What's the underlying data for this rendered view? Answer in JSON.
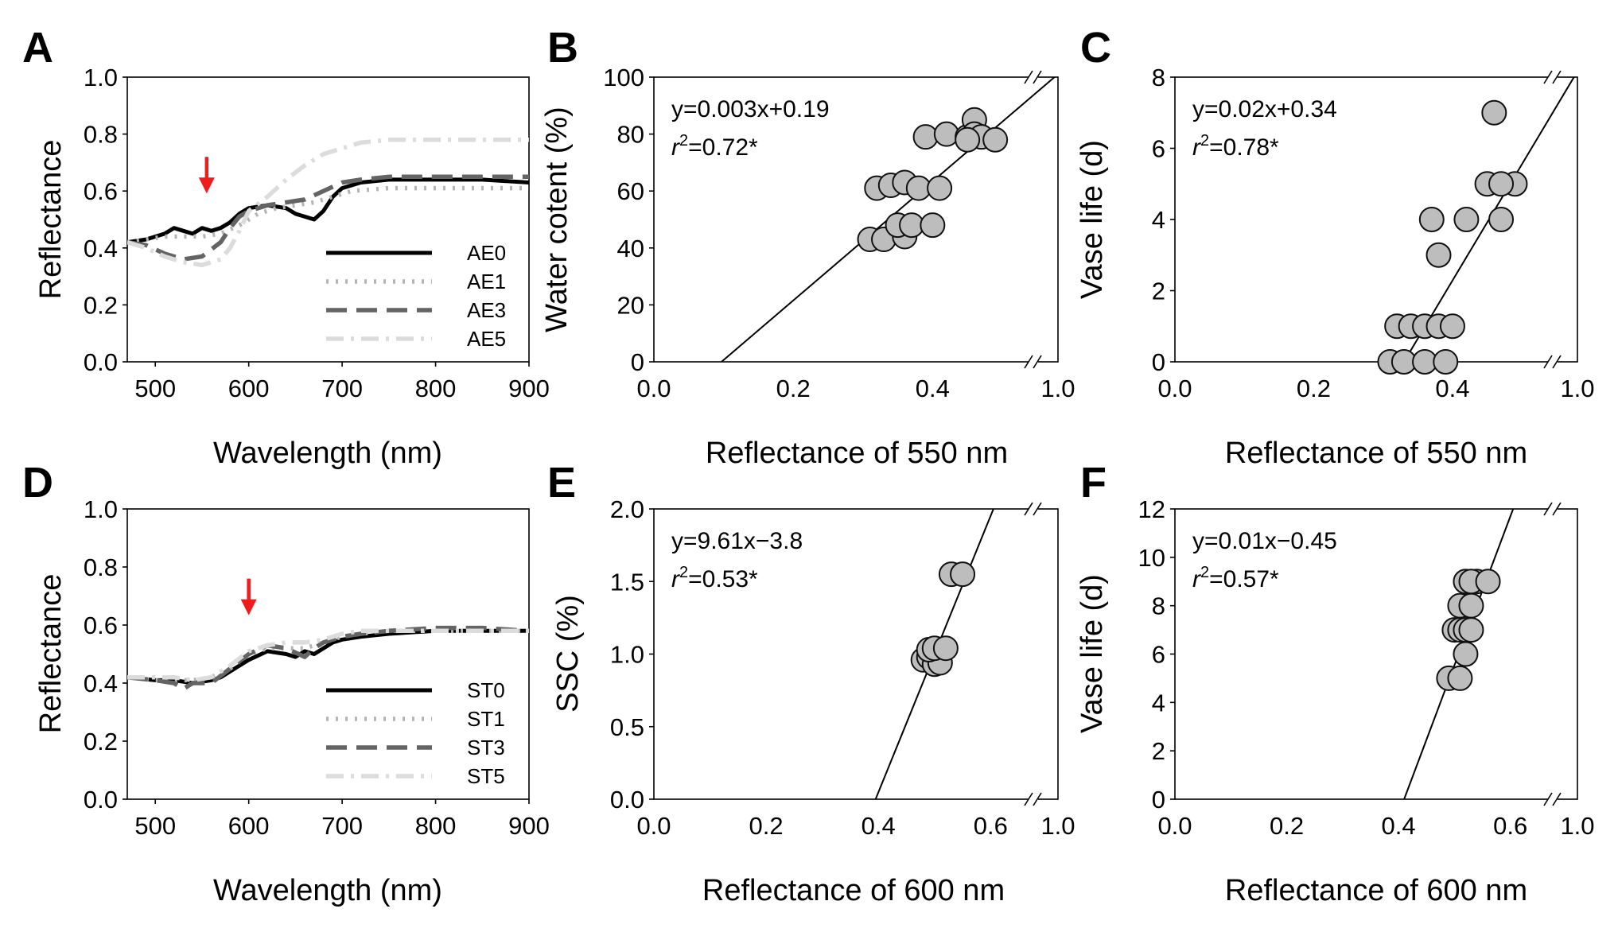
{
  "chart_data": [
    {
      "id": "A",
      "type": "line",
      "panel_label": "A",
      "xlabel": "Wavelength (nm)",
      "ylabel": "Reflectance",
      "xlim": [
        470,
        900
      ],
      "ylim": [
        0.0,
        1.0
      ],
      "xticks": [
        500,
        600,
        700,
        800,
        900
      ],
      "yticks": [
        "0.0",
        "0.2",
        "0.4",
        "0.6",
        "0.8",
        "1.0"
      ],
      "legend_position": "bottom-right",
      "arrow_at": [
        555,
        0.72
      ],
      "arrow_color": "#ee1c1c",
      "series": [
        {
          "name": "AE0",
          "color": "#000000",
          "dash": "solid",
          "x": [
            470,
            490,
            510,
            520,
            530,
            540,
            550,
            560,
            570,
            580,
            590,
            600,
            620,
            640,
            650,
            660,
            670,
            680,
            690,
            700,
            720,
            750,
            800,
            850,
            900
          ],
          "y": [
            0.42,
            0.43,
            0.45,
            0.47,
            0.46,
            0.45,
            0.47,
            0.46,
            0.47,
            0.49,
            0.52,
            0.54,
            0.55,
            0.54,
            0.52,
            0.51,
            0.5,
            0.53,
            0.58,
            0.61,
            0.63,
            0.64,
            0.64,
            0.64,
            0.63
          ]
        },
        {
          "name": "AE1",
          "color": "#b4b4b4",
          "dash": "dot",
          "x": [
            470,
            490,
            510,
            530,
            550,
            570,
            590,
            610,
            630,
            650,
            670,
            690,
            710,
            750,
            800,
            900
          ],
          "y": [
            0.42,
            0.43,
            0.44,
            0.44,
            0.44,
            0.45,
            0.48,
            0.52,
            0.54,
            0.55,
            0.56,
            0.58,
            0.6,
            0.61,
            0.61,
            0.61
          ]
        },
        {
          "name": "AE3",
          "color": "#646464",
          "dash": "dash",
          "x": [
            470,
            490,
            510,
            530,
            550,
            570,
            580,
            590,
            600,
            620,
            640,
            660,
            680,
            700,
            720,
            750,
            800,
            900
          ],
          "y": [
            0.42,
            0.41,
            0.38,
            0.36,
            0.37,
            0.42,
            0.47,
            0.51,
            0.53,
            0.55,
            0.56,
            0.57,
            0.6,
            0.63,
            0.64,
            0.65,
            0.65,
            0.65
          ]
        },
        {
          "name": "AE5",
          "color": "#dcdcdc",
          "dash": "dashdot",
          "x": [
            470,
            490,
            510,
            530,
            550,
            570,
            580,
            590,
            600,
            620,
            640,
            660,
            680,
            700,
            720,
            750,
            800,
            900
          ],
          "y": [
            0.42,
            0.4,
            0.37,
            0.35,
            0.34,
            0.36,
            0.4,
            0.46,
            0.53,
            0.58,
            0.64,
            0.69,
            0.73,
            0.75,
            0.77,
            0.78,
            0.78,
            0.78
          ]
        }
      ]
    },
    {
      "id": "B",
      "type": "scatter",
      "panel_label": "B",
      "xlabel": "Reflectance of 550 nm",
      "ylabel": "Water cotent (%)",
      "xlim": [
        0.0,
        0.58
      ],
      "ylim": [
        0,
        100
      ],
      "xticks": [
        "0.0",
        "0.2",
        "0.4"
      ],
      "xtick_end": "1.0",
      "yticks": [
        "0",
        "20",
        "40",
        "60",
        "80",
        "100"
      ],
      "equation": "y=0.003x+0.19",
      "r2_r": "r",
      "r2_sup": "2",
      "r2_value": "=0.72*",
      "fit_line": [
        [
          0.097,
          0
        ],
        [
          0.575,
          100
        ]
      ],
      "x": [
        0.31,
        0.33,
        0.36,
        0.35,
        0.37,
        0.4,
        0.32,
        0.34,
        0.36,
        0.38,
        0.41,
        0.39,
        0.42,
        0.45,
        0.46,
        0.47,
        0.46,
        0.47,
        0.45,
        0.49
      ],
      "y": [
        43,
        43,
        44,
        48,
        48,
        48,
        61,
        62,
        63,
        61,
        61,
        79,
        80,
        79,
        85,
        79,
        80,
        79,
        78,
        78
      ]
    },
    {
      "id": "C",
      "type": "scatter",
      "panel_label": "C",
      "xlabel": "Reflectance of 550 nm",
      "ylabel": "Vase life (d)",
      "xlim": [
        0.0,
        0.58
      ],
      "ylim": [
        0,
        8
      ],
      "xticks": [
        "0.0",
        "0.2",
        "0.4"
      ],
      "xtick_end": "1.0",
      "yticks": [
        "0",
        "2",
        "4",
        "6",
        "8"
      ],
      "equation": "y=0.02x+0.34",
      "r2_r": "r",
      "r2_sup": "2",
      "r2_value": "=0.78*",
      "fit_line": [
        [
          0.33,
          0
        ],
        [
          0.575,
          8
        ]
      ],
      "x": [
        0.31,
        0.33,
        0.36,
        0.39,
        0.32,
        0.34,
        0.36,
        0.38,
        0.4,
        0.38,
        0.37,
        0.42,
        0.47,
        0.45,
        0.49,
        0.47,
        0.46
      ],
      "y": [
        0,
        0,
        0,
        0,
        1,
        1,
        1,
        1,
        1,
        3,
        4,
        4,
        4,
        5,
        5,
        5,
        7
      ]
    },
    {
      "id": "D",
      "type": "line",
      "panel_label": "D",
      "xlabel": "Wavelength (nm)",
      "ylabel": "Reflectance",
      "xlim": [
        470,
        900
      ],
      "ylim": [
        0.0,
        1.0
      ],
      "xticks": [
        500,
        600,
        700,
        800,
        900
      ],
      "yticks": [
        "0.0",
        "0.2",
        "0.4",
        "0.6",
        "0.8",
        "1.0"
      ],
      "legend_position": "bottom-right",
      "arrow_at": [
        600,
        0.76
      ],
      "arrow_color": "#ee1c1c",
      "series": [
        {
          "name": "ST0",
          "color": "#000000",
          "dash": "solid",
          "x": [
            470,
            500,
            520,
            540,
            560,
            570,
            580,
            600,
            620,
            640,
            650,
            660,
            670,
            680,
            690,
            700,
            720,
            750,
            800,
            850,
            900
          ],
          "y": [
            0.42,
            0.41,
            0.41,
            0.4,
            0.41,
            0.42,
            0.44,
            0.48,
            0.51,
            0.5,
            0.49,
            0.51,
            0.5,
            0.52,
            0.54,
            0.55,
            0.56,
            0.57,
            0.58,
            0.58,
            0.58
          ]
        },
        {
          "name": "ST1",
          "color": "#b4b4b4",
          "dash": "dot",
          "x": [
            470,
            500,
            520,
            540,
            560,
            580,
            600,
            620,
            640,
            660,
            680,
            700,
            720,
            750,
            800,
            850,
            900
          ],
          "y": [
            0.42,
            0.41,
            0.41,
            0.41,
            0.42,
            0.45,
            0.5,
            0.52,
            0.52,
            0.52,
            0.54,
            0.56,
            0.57,
            0.58,
            0.58,
            0.58,
            0.58
          ]
        },
        {
          "name": "ST3",
          "color": "#646464",
          "dash": "dash",
          "x": [
            470,
            500,
            520,
            530,
            540,
            560,
            580,
            600,
            620,
            640,
            660,
            670,
            680,
            700,
            720,
            750,
            800,
            850,
            900
          ],
          "y": [
            0.42,
            0.41,
            0.4,
            0.38,
            0.4,
            0.4,
            0.45,
            0.5,
            0.53,
            0.52,
            0.49,
            0.52,
            0.54,
            0.56,
            0.57,
            0.58,
            0.59,
            0.59,
            0.58
          ]
        },
        {
          "name": "ST5",
          "color": "#dcdcdc",
          "dash": "dashdot",
          "x": [
            470,
            500,
            520,
            540,
            560,
            580,
            600,
            620,
            640,
            660,
            680,
            700,
            720,
            750,
            800,
            850,
            900
          ],
          "y": [
            0.42,
            0.42,
            0.42,
            0.41,
            0.42,
            0.46,
            0.51,
            0.53,
            0.54,
            0.54,
            0.55,
            0.57,
            0.58,
            0.58,
            0.58,
            0.58,
            0.58
          ]
        }
      ]
    },
    {
      "id": "E",
      "type": "scatter",
      "panel_label": "E",
      "xlabel": "Reflectance of 600 nm",
      "ylabel": "SSC (%)",
      "xlim": [
        0.0,
        0.72
      ],
      "ylim": [
        0.0,
        2.0
      ],
      "xticks": [
        "0.0",
        "0.2",
        "0.4",
        "0.6"
      ],
      "xtick_end": "1.0",
      "yticks": [
        "0.0",
        "0.5",
        "1.0",
        "1.5",
        "2.0"
      ],
      "equation": "y=9.61x−3.8",
      "r2_r": "r",
      "r2_sup": "2",
      "r2_value": "=0.53*",
      "fit_line": [
        [
          0.395,
          0.0
        ],
        [
          0.605,
          2.0
        ]
      ],
      "x": [
        0.48,
        0.49,
        0.5,
        0.51,
        0.49,
        0.5,
        0.52,
        0.53,
        0.55
      ],
      "y": [
        0.96,
        0.98,
        0.93,
        0.94,
        1.03,
        1.04,
        1.04,
        1.55,
        1.55
      ]
    },
    {
      "id": "F",
      "type": "scatter",
      "panel_label": "F",
      "xlabel": "Reflectance of 600 nm",
      "ylabel": "Vase life (d)",
      "xlim": [
        0.0,
        0.72
      ],
      "ylim": [
        0,
        12
      ],
      "xticks": [
        "0.0",
        "0.2",
        "0.4",
        "0.6"
      ],
      "xtick_end": "1.0",
      "yticks": [
        "0",
        "2",
        "4",
        "6",
        "8",
        "10",
        "12"
      ],
      "equation": "y=0.01x−0.45",
      "r2_r": "r",
      "r2_sup": "2",
      "r2_value": "=0.57*",
      "fit_line": [
        [
          0.41,
          0
        ],
        [
          0.605,
          12
        ]
      ],
      "x": [
        0.49,
        0.51,
        0.52,
        0.5,
        0.51,
        0.52,
        0.53,
        0.51,
        0.53,
        0.52,
        0.54,
        0.53,
        0.56
      ],
      "y": [
        5,
        5,
        6,
        7,
        7,
        7,
        7,
        8,
        8,
        9,
        9,
        9,
        9
      ]
    }
  ]
}
